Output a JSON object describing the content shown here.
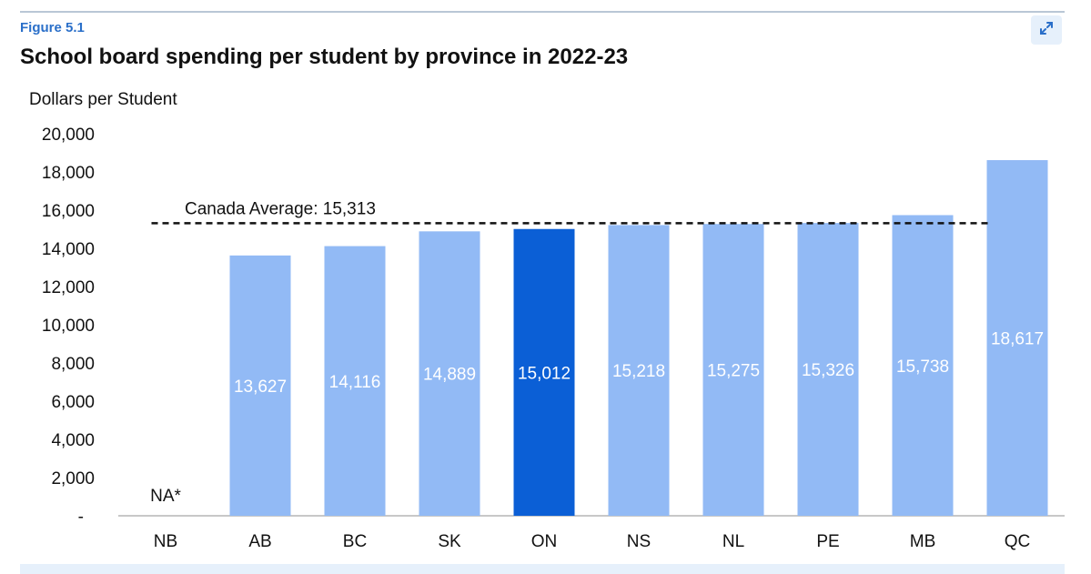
{
  "figure_label": "Figure 5.1",
  "title": "School board spending per student by province in 2022-23",
  "expand_icon": "expand-icon",
  "chart_data": {
    "type": "bar",
    "title": "School board spending per student by province in 2022-23",
    "ylabel": "Dollars per Student",
    "xlabel": "",
    "ylim": [
      0,
      20000
    ],
    "yticks": [
      0,
      2000,
      4000,
      6000,
      8000,
      10000,
      12000,
      14000,
      16000,
      18000,
      20000
    ],
    "ytick_labels": [
      "-",
      "2,000",
      "4,000",
      "6,000",
      "8,000",
      "10,000",
      "12,000",
      "14,000",
      "16,000",
      "18,000",
      "20,000"
    ],
    "categories": [
      "NB",
      "AB",
      "BC",
      "SK",
      "ON",
      "NS",
      "NL",
      "PE",
      "MB",
      "QC"
    ],
    "values": [
      null,
      13627,
      14116,
      14889,
      15012,
      15218,
      15275,
      15326,
      15738,
      18617
    ],
    "value_labels": [
      "NA*",
      "13,627",
      "14,116",
      "14,889",
      "15,012",
      "15,218",
      "15,275",
      "15,326",
      "15,738",
      "18,617"
    ],
    "highlight": "ON",
    "colors": {
      "default": "#92baf5",
      "highlight": "#0b5fd6",
      "average_line": "#111111"
    },
    "reference_line": {
      "label": "Canada Average: 15,313",
      "value": 15313,
      "style": "dashed"
    },
    "grid": false,
    "legend": "none"
  }
}
